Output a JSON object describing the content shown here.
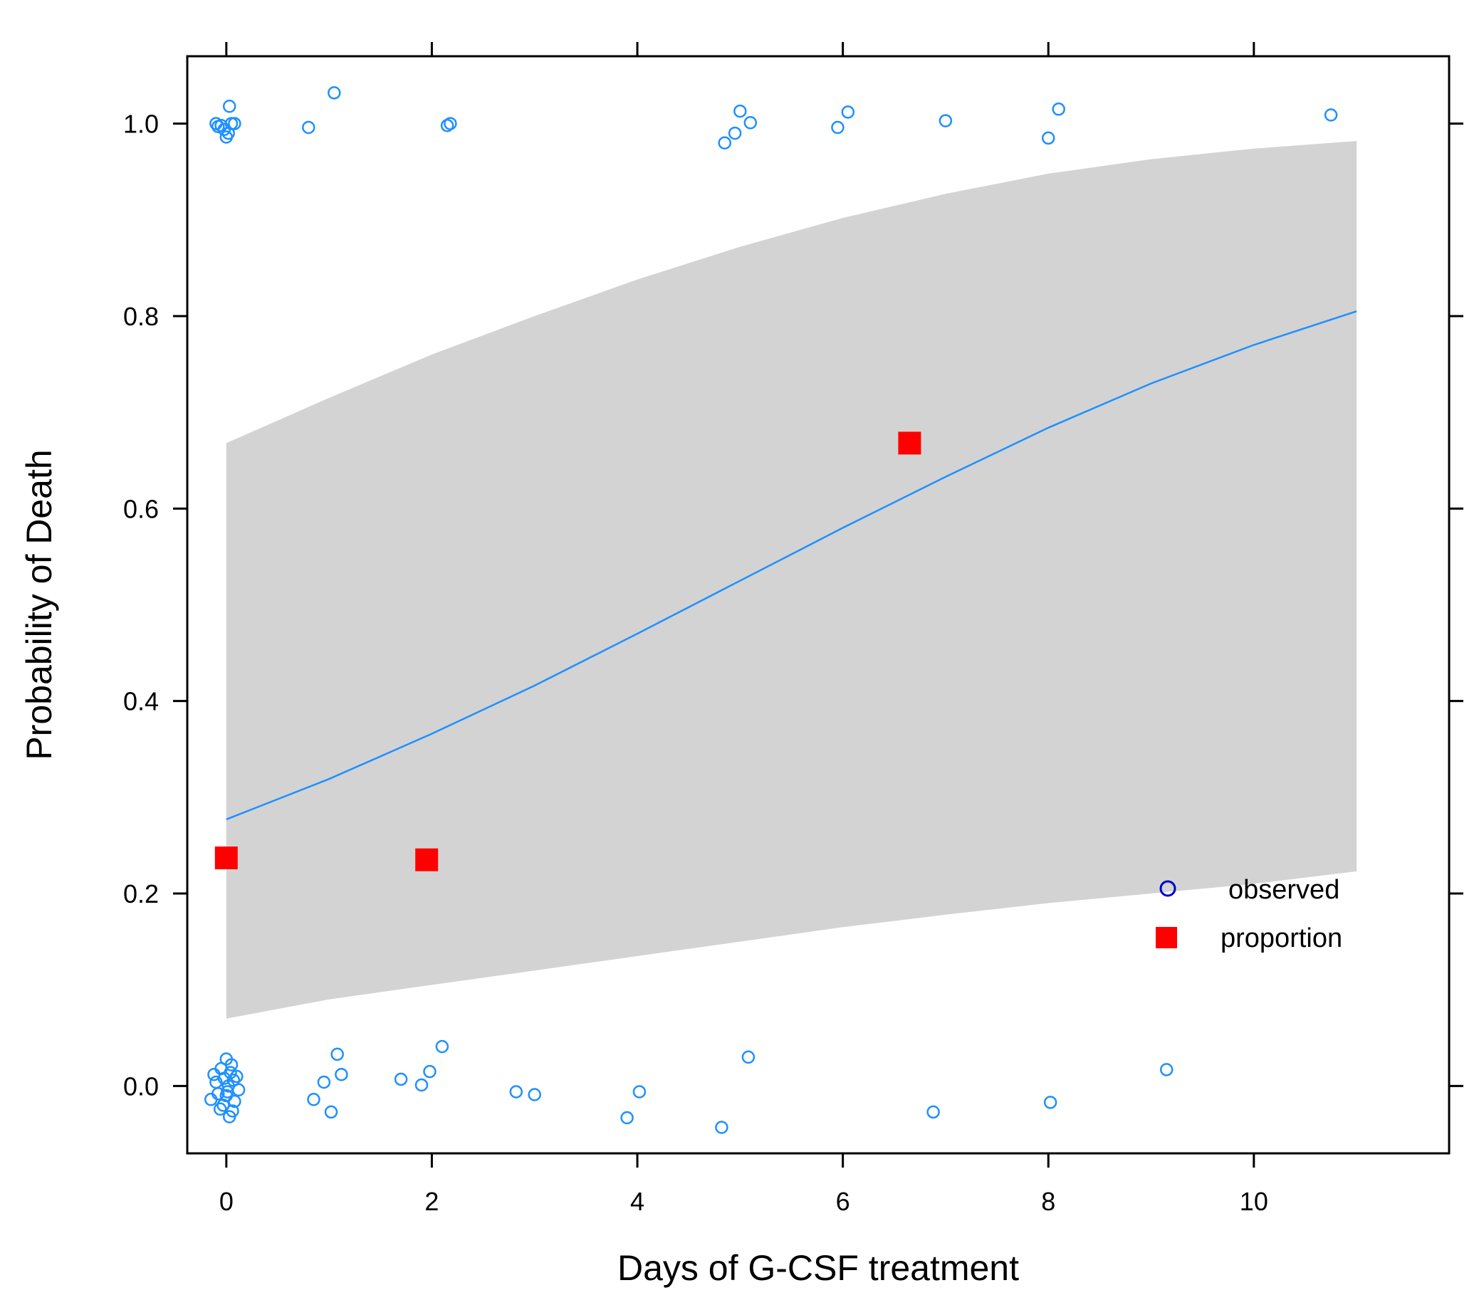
{
  "chart_data": {
    "type": "scatter",
    "title": "",
    "xlabel": "Days of G-CSF treatment",
    "ylabel": "Probability of Death",
    "xlim": [
      -0.38,
      11.9
    ],
    "ylim": [
      -0.07,
      1.07
    ],
    "xticks": [
      0,
      2,
      4,
      6,
      8,
      10
    ],
    "xtick_labels": [
      "0",
      "2",
      "4",
      "6",
      "8",
      "10"
    ],
    "yticks": [
      0.0,
      0.2,
      0.4,
      0.6,
      0.8,
      1.0
    ],
    "ytick_labels": [
      "0.0",
      "0.2",
      "0.4",
      "0.6",
      "0.8",
      "1.0"
    ],
    "grid": false,
    "legend_position": "bottom-right",
    "legend": [
      {
        "label": "observed",
        "marker": "open-circle",
        "color": "#0000cc"
      },
      {
        "label": "proportion",
        "marker": "filled-square",
        "color": "#ff0000"
      }
    ],
    "colors": {
      "observed": "#1e90ff",
      "fit": "#1e90ff",
      "band": "#d3d3d3",
      "proportion": "#ff0000"
    },
    "fitted_curve": {
      "x": [
        0,
        1,
        2,
        3,
        4,
        5,
        6,
        7,
        8,
        9,
        10,
        11
      ],
      "y": [
        0.277,
        0.319,
        0.366,
        0.416,
        0.47,
        0.525,
        0.58,
        0.633,
        0.684,
        0.73,
        0.77,
        0.805
      ]
    },
    "confidence_band": {
      "x": [
        0,
        1,
        2,
        3,
        4,
        5,
        6,
        7,
        8,
        9,
        10,
        11
      ],
      "lower": [
        0.07,
        0.09,
        0.105,
        0.12,
        0.135,
        0.15,
        0.165,
        0.178,
        0.19,
        0.2,
        0.21,
        0.223
      ],
      "upper": [
        0.668,
        0.715,
        0.76,
        0.8,
        0.838,
        0.872,
        0.902,
        0.927,
        0.948,
        0.963,
        0.974,
        0.982
      ]
    },
    "proportion": {
      "x": [
        0.0,
        1.95,
        6.65
      ],
      "y": [
        0.237,
        0.235,
        0.668
      ]
    },
    "observed": {
      "x": [
        -0.1,
        -0.05,
        -0.02,
        0.02,
        0.05,
        0.08,
        -0.08,
        0.0,
        0.03,
        0.8,
        1.05,
        2.15,
        2.18,
        4.85,
        4.95,
        5.0,
        5.1,
        5.95,
        6.05,
        7.0,
        8.0,
        8.1,
        10.75,
        -0.15,
        -0.12,
        -0.1,
        -0.08,
        -0.05,
        -0.03,
        0.0,
        0.0,
        0.02,
        0.03,
        0.05,
        0.07,
        0.1,
        0.12,
        -0.06,
        0.04,
        0.08,
        -0.02,
        0.01,
        0.06,
        0.85,
        0.95,
        1.02,
        1.08,
        1.12,
        1.7,
        1.9,
        1.98,
        2.1,
        2.82,
        3.0,
        3.9,
        4.02,
        4.82,
        5.08,
        6.88,
        8.02,
        9.15
      ],
      "y": [
        1.0,
        0.998,
        0.994,
        0.99,
        1.0,
        1.0,
        0.997,
        0.986,
        1.018,
        0.996,
        1.032,
        0.998,
        1.0,
        0.98,
        0.99,
        1.013,
        1.001,
        0.996,
        1.012,
        1.003,
        0.985,
        1.015,
        1.009,
        -0.014,
        0.012,
        0.004,
        -0.008,
        0.018,
        -0.02,
        0.028,
        -0.01,
        0.0,
        -0.032,
        0.022,
        0.006,
        0.01,
        -0.004,
        -0.024,
        0.014,
        -0.016,
        0.008,
        -0.006,
        -0.026,
        -0.014,
        0.004,
        -0.027,
        0.033,
        0.012,
        0.007,
        0.001,
        0.015,
        0.041,
        -0.006,
        -0.009,
        -0.033,
        -0.006,
        -0.043,
        0.03,
        -0.027,
        -0.017,
        0.017
      ]
    }
  }
}
